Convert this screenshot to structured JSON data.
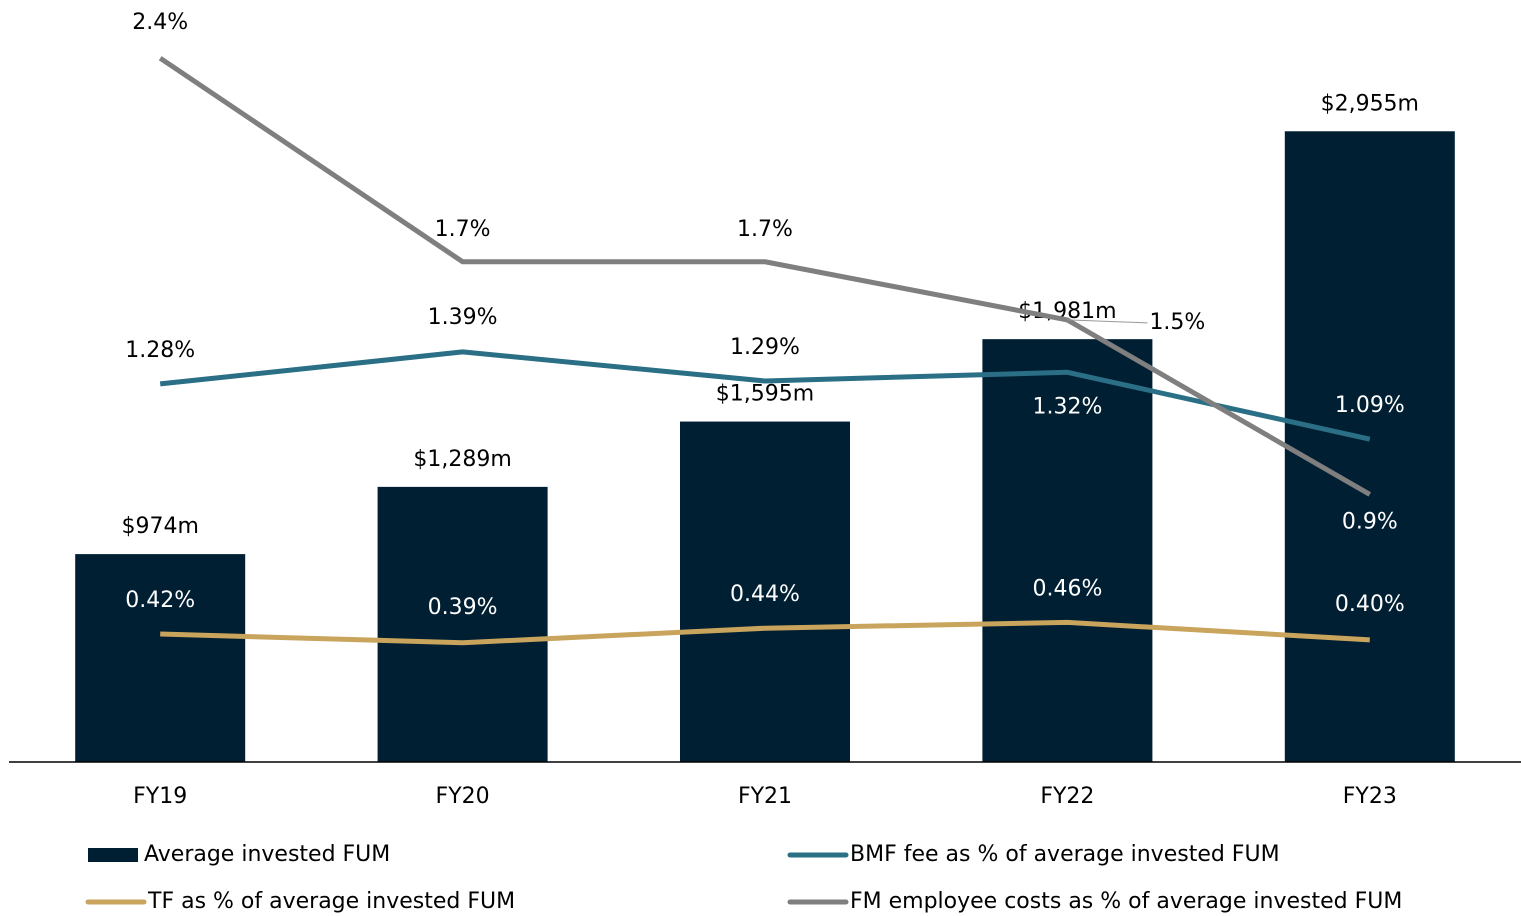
{
  "chart_data": {
    "type": "bar",
    "categories": [
      "FY19",
      "FY20",
      "FY21",
      "FY22",
      "FY23"
    ],
    "ylim": [
      0,
      3570
    ],
    "y2lim": [
      -0.02,
      2.6
    ],
    "series": [
      {
        "name": "Average invested FUM",
        "type": "bar",
        "color": "#001f33",
        "values": [
          974,
          1289,
          1595,
          1981,
          2955
        ],
        "value_labels": [
          "$974m",
          "$1,289m",
          "$1,595m",
          "$1,981m",
          "$2,955m"
        ]
      },
      {
        "name": "BMF fee as % of average invested FUM",
        "type": "line",
        "axis": "y2",
        "color": "#2a6f86",
        "values": [
          1.28,
          1.39,
          1.29,
          1.32,
          1.09
        ],
        "value_labels": [
          "1.28%",
          "1.39%",
          "1.29%",
          "1.32%",
          "1.09%"
        ]
      },
      {
        "name": "TF as % of average invested FUM",
        "type": "line",
        "axis": "y2",
        "color": "#c9a45c",
        "values": [
          0.42,
          0.39,
          0.44,
          0.46,
          0.4
        ],
        "value_labels": [
          "0.42%",
          "0.39%",
          "0.44%",
          "0.46%",
          "0.40%"
        ]
      },
      {
        "name": "FM employee costs as % of average invested FUM",
        "type": "line",
        "axis": "y2",
        "color": "#7f7f7f",
        "values": [
          2.4,
          1.7,
          1.7,
          1.5,
          0.9
        ],
        "value_labels": [
          "2.4%",
          "1.7%",
          "1.7%",
          "1.5%",
          "0.9%"
        ]
      }
    ]
  }
}
